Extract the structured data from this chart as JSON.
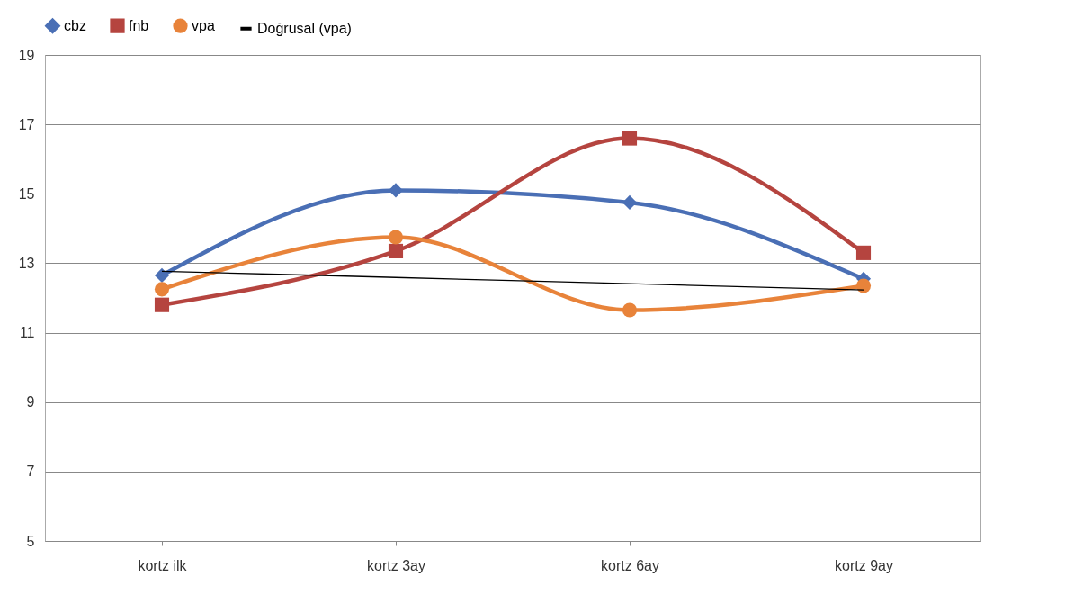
{
  "chart_data": {
    "type": "line",
    "categories": [
      "kortz ilk",
      "kortz 3ay",
      "kortz 6ay",
      "kortz 9ay"
    ],
    "series": [
      {
        "name": "cbz",
        "color": "#4a6fb5",
        "marker": "diamond",
        "values": [
          12.65,
          15.1,
          14.75,
          12.55
        ]
      },
      {
        "name": "fnb",
        "color": "#b5443f",
        "marker": "square",
        "values": [
          11.8,
          13.35,
          16.6,
          13.3
        ]
      },
      {
        "name": "vpa",
        "color": "#e8833a",
        "marker": "circle",
        "values": [
          12.25,
          13.75,
          11.65,
          12.35
        ]
      },
      {
        "name": "Doğrusal (vpa)",
        "color": "#000000",
        "marker": "none",
        "values": [
          12.77,
          12.59,
          12.41,
          12.23
        ]
      }
    ],
    "ylim": [
      5,
      19
    ],
    "yticks": [
      5,
      7,
      9,
      11,
      13,
      15,
      17,
      19
    ],
    "grid": "y",
    "legend": "top",
    "line_style": "solid"
  }
}
